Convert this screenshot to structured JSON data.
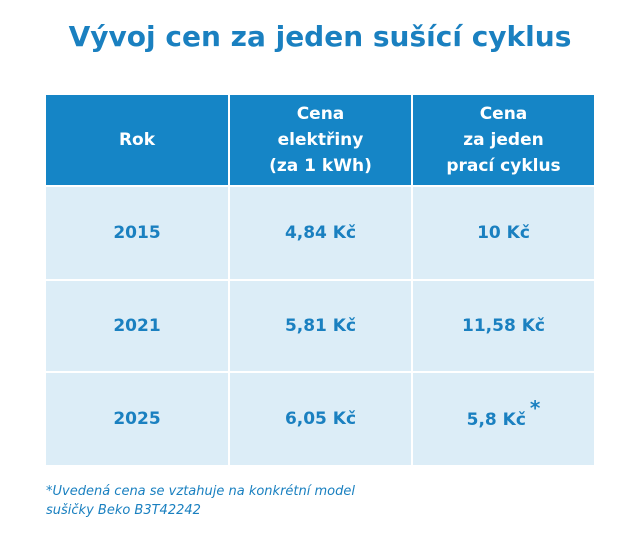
{
  "header": {
    "title": "Vývoj cen za jeden sušící cyklus"
  },
  "table": {
    "columns": [
      [
        "Rok"
      ],
      [
        "Cena",
        "elektřiny",
        "(za 1 kWh)"
      ],
      [
        "Cena",
        "za jeden",
        "prací cyklus"
      ]
    ],
    "rows": [
      [
        "2015",
        "4,84 Kč",
        "10 Kč"
      ],
      [
        "2021",
        "5,81 Kč",
        "11,58 Kč"
      ],
      [
        "2025",
        "6,05 Kč",
        "5,8 Kč"
      ]
    ],
    "footnote_marker": "*"
  },
  "footnote": [
    "*Uvedená cena se vztahuje na konkrétní model",
    "sušičky Beko B3T42242"
  ]
}
